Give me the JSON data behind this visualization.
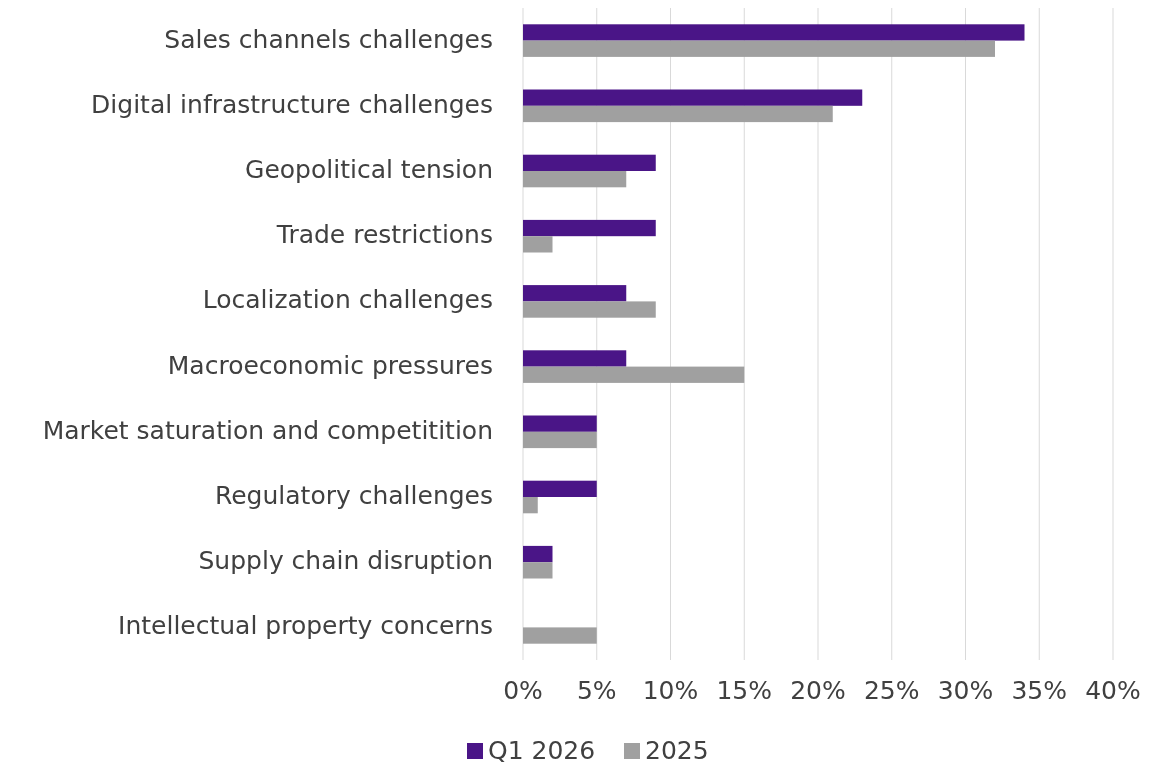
{
  "chart_data": {
    "type": "bar",
    "orientation": "horizontal",
    "categories": [
      "Sales channels challenges",
      "Digital infrastructure challenges",
      "Geopolitical tension",
      "Trade restrictions",
      "Localization challenges",
      "Macroeconomic pressures",
      "Market saturation and competitition",
      "Regulatory challenges",
      "Supply chain disruption",
      "Intellectual property concerns"
    ],
    "series": [
      {
        "name": "Q1 2026",
        "color": "#4a1587",
        "values": [
          34,
          23,
          9,
          9,
          7,
          7,
          5,
          5,
          2,
          0
        ]
      },
      {
        "name": "2025",
        "color": "#a0a0a0",
        "values": [
          32,
          21,
          7,
          2,
          9,
          15,
          5,
          1,
          2,
          5
        ]
      }
    ],
    "xlim": [
      0,
      40
    ],
    "xticks": [
      {
        "value": 0,
        "label": "0%"
      },
      {
        "value": 5,
        "label": "5%"
      },
      {
        "value": 10,
        "label": "10%"
      },
      {
        "value": 15,
        "label": "15%"
      },
      {
        "value": 20,
        "label": "20%"
      },
      {
        "value": 25,
        "label": "25%"
      },
      {
        "value": 30,
        "label": "30%"
      },
      {
        "value": 35,
        "label": "35%"
      },
      {
        "value": 40,
        "label": "40%"
      }
    ],
    "grid": "x",
    "legend": "bottom"
  }
}
